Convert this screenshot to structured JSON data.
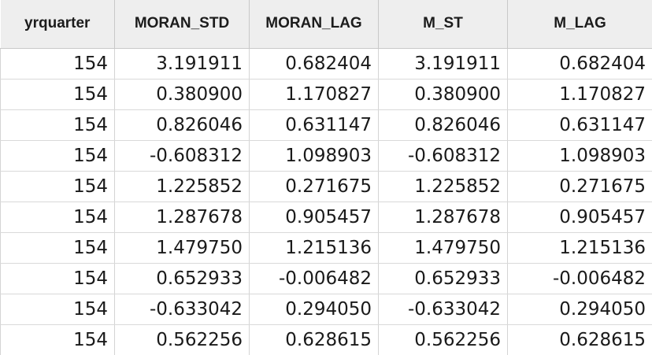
{
  "table": {
    "columns": [
      "yrquarter",
      "MORAN_STD",
      "MORAN_LAG",
      "M_ST",
      "M_LAG"
    ],
    "rows": [
      [
        "154",
        "3.191911",
        "0.682404",
        "3.191911",
        "0.682404"
      ],
      [
        "154",
        "0.380900",
        "1.170827",
        "0.380900",
        "1.170827"
      ],
      [
        "154",
        "0.826046",
        "0.631147",
        "0.826046",
        "0.631147"
      ],
      [
        "154",
        "-0.608312",
        "1.098903",
        "-0.608312",
        "1.098903"
      ],
      [
        "154",
        "1.225852",
        "0.271675",
        "1.225852",
        "0.271675"
      ],
      [
        "154",
        "1.287678",
        "0.905457",
        "1.287678",
        "0.905457"
      ],
      [
        "154",
        "1.479750",
        "1.215136",
        "1.479750",
        "1.215136"
      ],
      [
        "154",
        "0.652933",
        "-0.006482",
        "0.652933",
        "-0.006482"
      ],
      [
        "154",
        "-0.633042",
        "0.294050",
        "-0.633042",
        "0.294050"
      ],
      [
        "154",
        "0.562256",
        "0.628615",
        "0.562256",
        "0.628615"
      ]
    ]
  }
}
